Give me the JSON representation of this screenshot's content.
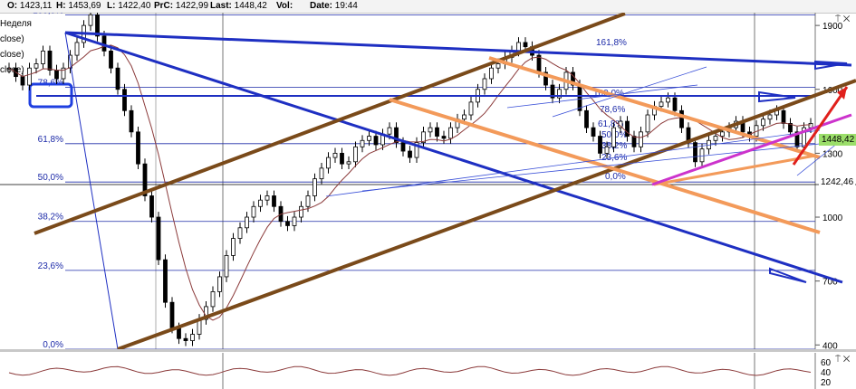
{
  "topbar": [
    {
      "label": "O:",
      "value": "1423,11",
      "x": 8
    },
    {
      "label": "H:",
      "value": "1453,69",
      "x": 62
    },
    {
      "label": "L:",
      "value": "1422,40",
      "x": 118
    },
    {
      "label": "PrC:",
      "value": "1422,99",
      "x": 170
    },
    {
      "label": "Last:",
      "value": "1448,42",
      "x": 232
    },
    {
      "label": "Vol:",
      "value": "",
      "x": 305
    },
    {
      "label": "Date:",
      "value": "19:44",
      "x": 342
    }
  ],
  "legend": [
    "Неделя",
    "close)",
    "close)",
    "close)"
  ],
  "controls": {
    "top": "⍑ ✕",
    "bottom": "⍑ ✕"
  },
  "colors": {
    "candle": "#000000",
    "ma": "#8b3a3a",
    "fib": "#1c2aa8",
    "channel_brown": "#7a4a1a",
    "channel_orange": "#f39a5a",
    "trend_blue": "#1e2fc2",
    "magenta": "#cc33cc",
    "arrow_red": "#e0201c",
    "price_badge": "#9bde6a",
    "highlight_box": "#1f3fe0"
  },
  "chart_data": {
    "type": "candlestick",
    "ylim": [
      380,
      1960
    ],
    "y_ticks": [
      1900,
      1600,
      1300,
      1000,
      700,
      400
    ],
    "y_tick_labels": [
      "1900",
      "1600",
      "1300",
      "1000",
      "700",
      "400"
    ],
    "last_price": 1448.42,
    "last_price_label": "1448,42",
    "marked_level": 1242.46,
    "marked_level_label": "1242,46",
    "closes": [
      1700,
      1660,
      1620,
      1700,
      1720,
      1780,
      1690,
      1650,
      1700,
      1760,
      1820,
      1900,
      1950,
      1850,
      1780,
      1700,
      1600,
      1500,
      1400,
      1250,
      1100,
      1000,
      800,
      600,
      480,
      430,
      420,
      450,
      520,
      580,
      650,
      720,
      820,
      900,
      950,
      1000,
      1050,
      1080,
      1100,
      1050,
      980,
      960,
      1000,
      1050,
      1100,
      1180,
      1230,
      1280,
      1300,
      1250,
      1260,
      1330,
      1360,
      1380,
      1340,
      1390,
      1420,
      1350,
      1310,
      1280,
      1350,
      1400,
      1420,
      1380,
      1370,
      1420,
      1460,
      1480,
      1540,
      1600,
      1650,
      1700,
      1720,
      1750,
      1780,
      1820,
      1800,
      1760,
      1680,
      1620,
      1560,
      1600,
      1680,
      1620,
      1500,
      1420,
      1380,
      1300,
      1330,
      1420,
      1450,
      1380,
      1330,
      1400,
      1480,
      1520,
      1540,
      1560,
      1500,
      1420,
      1350,
      1260,
      1320,
      1360,
      1380,
      1400,
      1420,
      1450,
      1400,
      1380,
      1430,
      1460,
      1480,
      1500,
      1440,
      1400,
      1330,
      1420,
      1440
    ],
    "fib_levels": [
      {
        "label": "100,0%",
        "value": 1950
      },
      {
        "label": "78,6%",
        "value": 1610
      },
      {
        "label": "61,8%",
        "value": 1345
      },
      {
        "label": "50,0%",
        "value": 1165
      },
      {
        "label": "38,2%",
        "value": 980
      },
      {
        "label": "23,6%",
        "value": 750
      },
      {
        "label": "0,0%",
        "value": 380
      }
    ],
    "fib_levels_right": [
      {
        "label": "161,8%"
      },
      {
        "label": "100,0%"
      },
      {
        "label": "78,6%"
      },
      {
        "label": "61,8%"
      },
      {
        "label": "50,0%"
      },
      {
        "label": "38,2%"
      },
      {
        "label": "23,6%"
      },
      {
        "label": "0,0%"
      }
    ],
    "oscillator_ticks": [
      "60",
      "40",
      "20"
    ]
  }
}
